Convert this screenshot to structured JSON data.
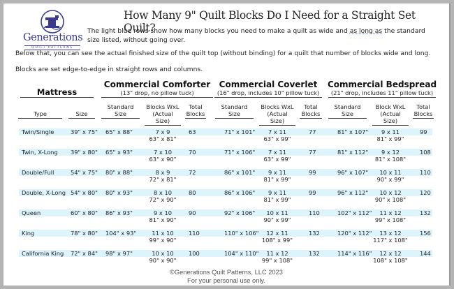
{
  "logo": {
    "name": "Generations",
    "tagline": "QUILT PATTERNS",
    "icon": "sewing-machine-icon",
    "color": "#3a3a8c"
  },
  "title": "How Many 9\" Quilt Blocks Do I Need for a Straight Set Quilt?",
  "intro": {
    "line1_pre": "The light blue rows show how many blocks you need to make a quilt as wide and ",
    "line1_marked": "as long as",
    "line1_post": " the standard",
    "line2": "size listed, without going over."
  },
  "paragraphs": [
    "Below that, you can see the actual finished size of the quilt top (without binding) for a quilt that number of blocks wide and long.",
    "Blocks are set edge-to-edge in straight rows and columns."
  ],
  "table": {
    "highlight_color": "#ddf4fc",
    "mattress_header": "Mattress",
    "groups": [
      {
        "title": "Commercial Comforter",
        "subtitle": "(13\" drop, no pillow tuck)"
      },
      {
        "title": "Commercial Coverlet",
        "subtitle": "(16\" drop, includes 10\" pillow tuck)"
      },
      {
        "title": "Commercial Bedspread",
        "subtitle": "(21\" drop, includes 11\" pillow tuck)"
      }
    ],
    "columns": {
      "type": "Type",
      "size": "Size",
      "comforter": {
        "std_1": "Standard",
        "std_2": "Size",
        "blk_1": "Blocks WxL",
        "blk_2": "(Actual Size)",
        "tot_1": "Total",
        "tot_2": "Blocks"
      },
      "coverlet": {
        "std_1": "Standard",
        "std_2": "Size",
        "blk_1": "Blocks WxL",
        "blk_2": "(Actual Size)",
        "tot_1": "Total",
        "tot_2": "Blocks"
      },
      "bedspread": {
        "std_1": "Standard",
        "std_2": "Size",
        "blk_1": "Block WxL",
        "blk_2": "(Actual Size)",
        "tot_1": "Total",
        "tot_2": "Blocks"
      }
    },
    "rows": [
      {
        "type": "Twin/Single",
        "size": "39\" x 75\"",
        "comforter": {
          "std": "65\" x 88\"",
          "blocks": "7 x 9",
          "actual": "63\" x 81\"",
          "total": "63"
        },
        "coverlet": {
          "std": "71\" x 101\"",
          "blocks": "7 x 11",
          "actual": "63\" x 99\"",
          "total": "77"
        },
        "bedspread": {
          "std": "81\" x 107\"",
          "blocks": "9 x 11",
          "actual": "81\" x 99\"",
          "total": "99"
        }
      },
      {
        "type": "Twin, X-Long",
        "size": "39\" x 80\"",
        "comforter": {
          "std": "65\" x 93\"",
          "blocks": "7 x 10",
          "actual": "63\" x 90\"",
          "total": "70"
        },
        "coverlet": {
          "std": "71\" x 106\"",
          "blocks": "7 x 11",
          "actual": "63\" x 99\"",
          "total": "77"
        },
        "bedspread": {
          "std": "81\" x 112\"",
          "blocks": "9 x 12",
          "actual": "81\" x 108\"",
          "total": "108"
        }
      },
      {
        "type": "Double/Full",
        "size": "54\" x 75\"",
        "comforter": {
          "std": "80\" x 88\"",
          "blocks": "8 x 9",
          "actual": "72\" x 81\"",
          "total": "72"
        },
        "coverlet": {
          "std": "86\" x 101\"",
          "blocks": "9 x 11",
          "actual": "81\" x 99\"",
          "total": "99"
        },
        "bedspread": {
          "std": "96\" x 107\"",
          "blocks": "10 x 11",
          "actual": "90\" x 99\"",
          "total": "110"
        }
      },
      {
        "type": "Double, X-Long",
        "size": "54\" x 80\"",
        "comforter": {
          "std": "80\" x 93\"",
          "blocks": "8 x 10",
          "actual": "72\" x 90\"",
          "total": "80"
        },
        "coverlet": {
          "std": "86\" x 106\"",
          "blocks": "9 x 11",
          "actual": "81\" x 99\"",
          "total": "99"
        },
        "bedspread": {
          "std": "96\" x 112\"",
          "blocks": "10 x 12",
          "actual": "90\" x 108\"",
          "total": "120"
        }
      },
      {
        "type": "Queen",
        "size": "60\" x 80\"",
        "comforter": {
          "std": "86\" x 93\"",
          "blocks": "9 x 10",
          "actual": "81\" x 90\"",
          "total": "90"
        },
        "coverlet": {
          "std": "92\" x 106\"",
          "blocks": "10 x 11",
          "actual": "90\" x 99\"",
          "total": "110"
        },
        "bedspread": {
          "std": "102\" x 112\"",
          "blocks": "11 x 12",
          "actual": "99\" x 108\"",
          "total": "132"
        }
      },
      {
        "type": "King",
        "size": "78\" x 80\"",
        "comforter": {
          "std": "104\" x 93\"",
          "blocks": "11 x 10",
          "actual": "99\" x 90\"",
          "total": "110"
        },
        "coverlet": {
          "std": "110\" x 106\"",
          "blocks": "12 x 11",
          "actual": "108\" x 99\"",
          "total": "132"
        },
        "bedspread": {
          "std": "120\" x 112\"",
          "blocks": "13 x 12",
          "actual": "117\" x 108\"",
          "total": "156"
        }
      },
      {
        "type": "California King",
        "size": "72\" x 84\"",
        "comforter": {
          "std": "98\" x 97\"",
          "blocks": "10 x 10",
          "actual": "90\" x 90\"",
          "total": "100"
        },
        "coverlet": {
          "std": "104\" x 110\"",
          "blocks": "11 x 12",
          "actual": "99\" x 108\"",
          "total": "132"
        },
        "bedspread": {
          "std": "114\" x 116\"",
          "blocks": "12 x 12",
          "actual": "108\" x 108\"",
          "total": "144"
        }
      }
    ]
  },
  "footer": {
    "copyright": "©Generations Quilt Patterns, LLC 2023",
    "note": "For your personal use only."
  }
}
